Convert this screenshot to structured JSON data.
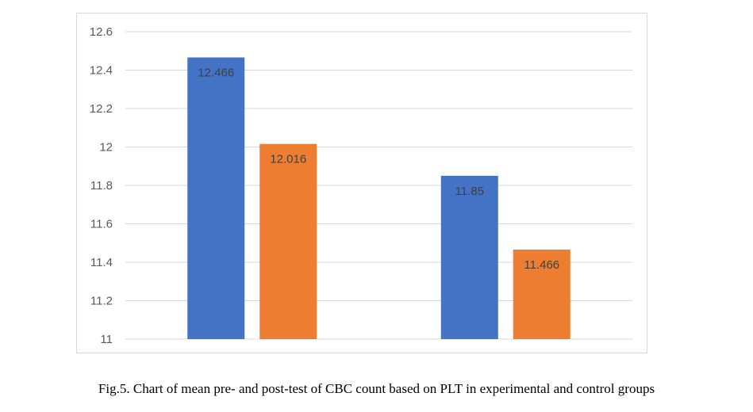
{
  "caption": "Fig.5. Chart of mean pre- and post-test of CBC count based on PLT in experimental and control groups",
  "colors": {
    "series1": "#4472c4",
    "series2": "#ed7d31"
  },
  "chart_data": {
    "type": "bar",
    "title": "",
    "xlabel": "",
    "ylabel": "",
    "categories": [
      "",
      ""
    ],
    "series": [
      {
        "values": [
          12.466,
          11.85
        ],
        "labels": [
          "12.466",
          "11.85"
        ]
      },
      {
        "values": [
          12.016,
          11.466
        ],
        "labels": [
          "12.016",
          "11.466"
        ]
      }
    ],
    "ylim": [
      11,
      12.6
    ],
    "yticks": [
      "11",
      "11.2",
      "11.4",
      "11.6",
      "11.8",
      "12",
      "12.2",
      "12.4",
      "12.6"
    ],
    "grid": true,
    "legend": "none"
  }
}
